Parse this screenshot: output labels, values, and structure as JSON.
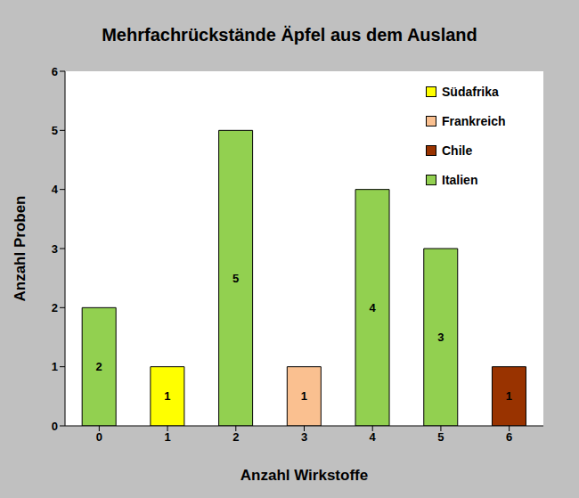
{
  "chart_data": {
    "type": "bar",
    "title": "Mehrfachrückstände Äpfel aus dem Ausland",
    "x_label": "Anzahl  Wirkstoffe",
    "y_label": "Anzahl  Proben",
    "categories": [
      "0",
      "1",
      "2",
      "3",
      "4",
      "5",
      "6"
    ],
    "series": [
      {
        "name": "Südafrika",
        "color": "#ffff00",
        "values": [
          null,
          1,
          null,
          null,
          null,
          null,
          null
        ]
      },
      {
        "name": "Frankreich",
        "color": "#fac090",
        "values": [
          null,
          null,
          null,
          1,
          null,
          null,
          null
        ]
      },
      {
        "name": "Chile",
        "color": "#993300",
        "values": [
          null,
          null,
          null,
          null,
          null,
          null,
          1
        ]
      },
      {
        "name": "Italien",
        "color": "#92d050",
        "values": [
          2,
          null,
          5,
          null,
          4,
          3,
          null
        ]
      }
    ],
    "stacked": true,
    "ylim": [
      0,
      6
    ],
    "yticks": [
      0,
      1,
      2,
      3,
      4,
      5,
      6
    ],
    "grid": false,
    "legend": "upper right",
    "data_labels": true
  }
}
